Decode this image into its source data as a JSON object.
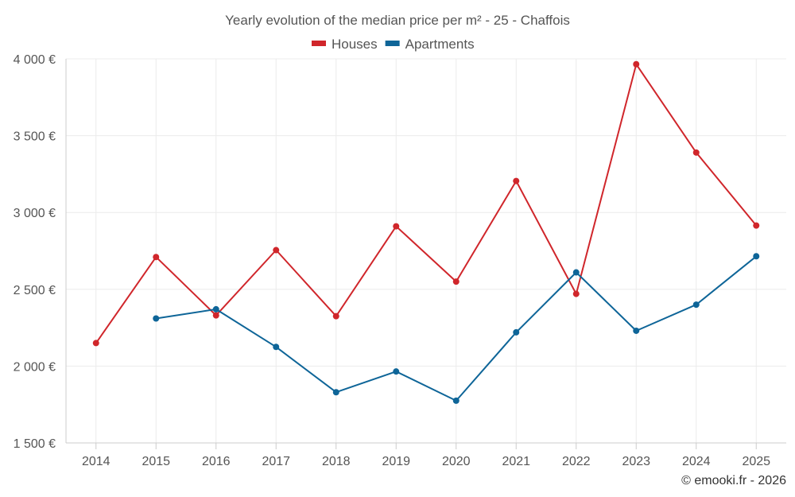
{
  "chart_data": {
    "type": "line",
    "title": "Yearly evolution of the median price per m² - 25 - Chaffois",
    "categories": [
      "2014",
      "2015",
      "2016",
      "2017",
      "2018",
      "2019",
      "2020",
      "2021",
      "2022",
      "2023",
      "2024",
      "2025"
    ],
    "series": [
      {
        "name": "Houses",
        "color": "#d0262b",
        "values": [
          2150,
          2710,
          2330,
          2755,
          2325,
          2910,
          2550,
          3205,
          2470,
          3965,
          3390,
          2915
        ]
      },
      {
        "name": "Apartments",
        "color": "#0e6598",
        "values": [
          null,
          2310,
          2370,
          2125,
          1830,
          1965,
          1775,
          2220,
          2610,
          2230,
          2400,
          2715
        ]
      }
    ],
    "ylim": [
      1500,
      4000
    ],
    "yticks": [
      1500,
      2000,
      2500,
      3000,
      3500,
      4000
    ],
    "ytick_labels": [
      "1 500 €",
      "2 000 €",
      "2 500 €",
      "3 000 €",
      "3 500 €",
      "4 000 €"
    ],
    "xlabel": "",
    "ylabel": "",
    "grid": true,
    "legend_position": "top-center",
    "credit": "© emooki.fr - 2026"
  }
}
